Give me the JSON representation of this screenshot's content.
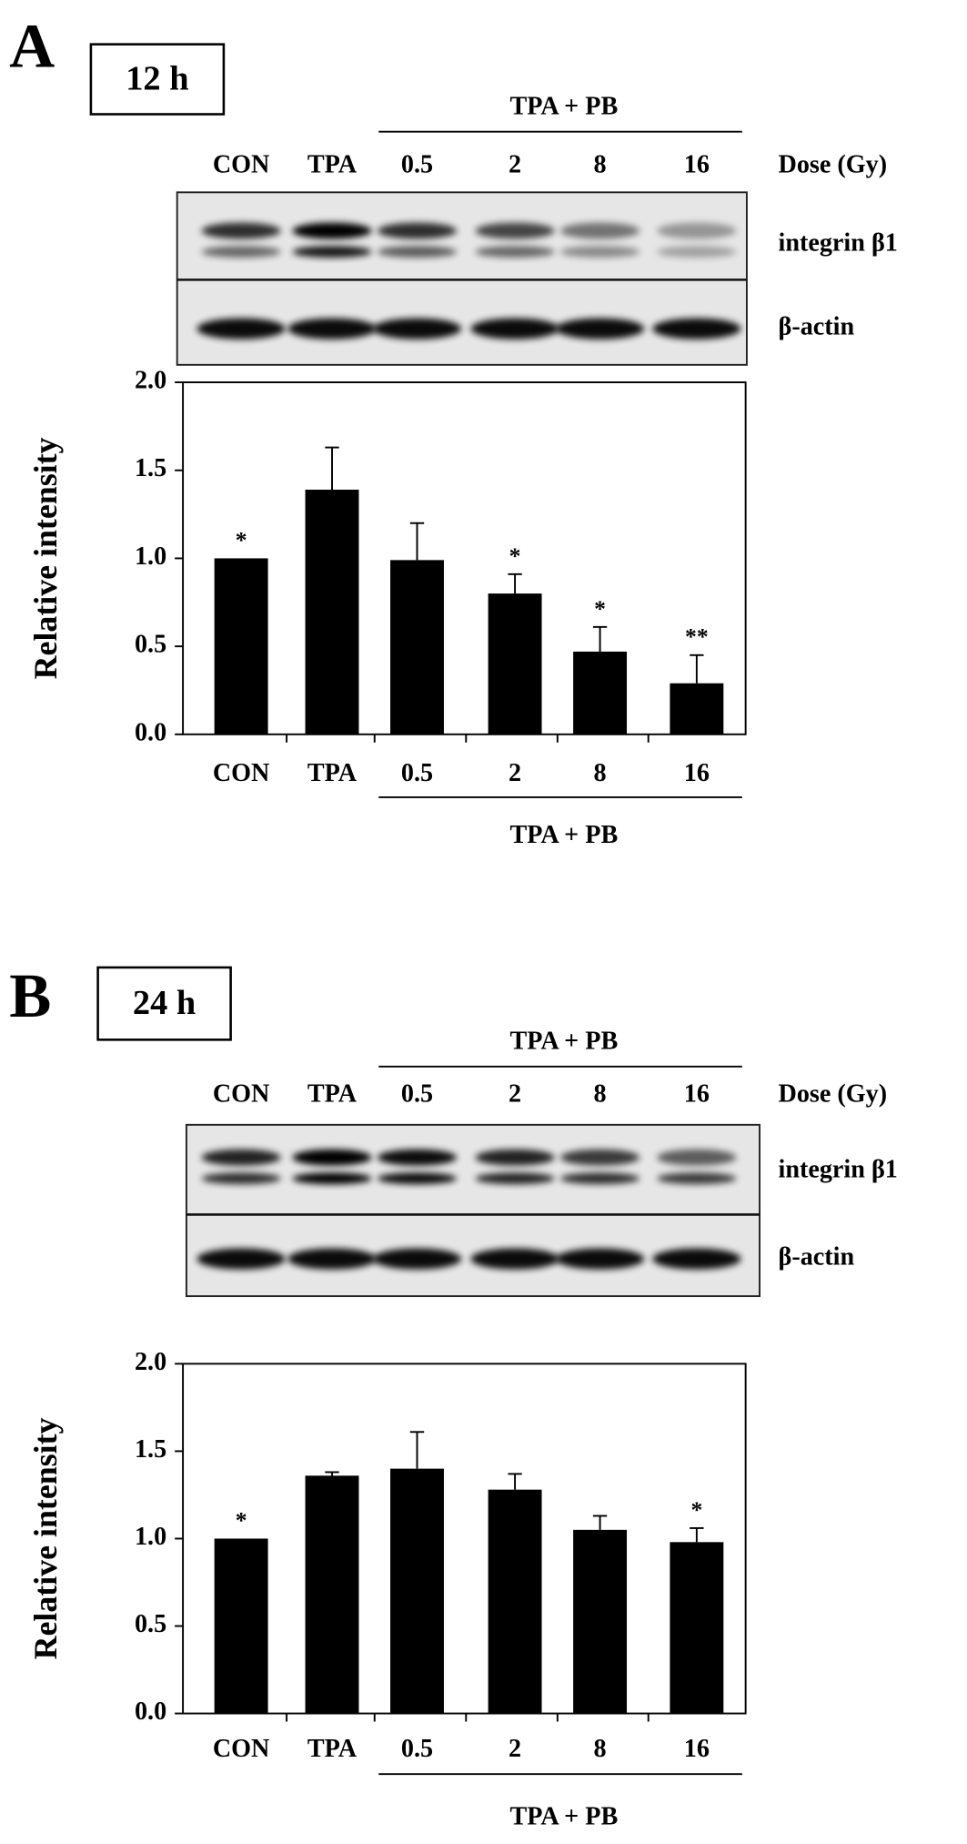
{
  "chart_data": [
    {
      "type": "bar",
      "panel": "A",
      "time_label": "12 h",
      "group_label": "TPA + PB",
      "dose_label": "Dose (Gy)",
      "blot_labels": [
        "integrin β1",
        "β-actin"
      ],
      "ylabel": "Relative intensity",
      "categories": [
        "CON",
        "TPA",
        "0.5",
        "2",
        "8",
        "16"
      ],
      "values": [
        1.0,
        1.39,
        0.99,
        0.8,
        0.47,
        0.29
      ],
      "errors": [
        0,
        0.24,
        0.21,
        0.11,
        0.14,
        0.16
      ],
      "annotations": [
        "*",
        null,
        null,
        "*",
        "*",
        "**"
      ],
      "color": "#000000",
      "ylim": [
        0,
        2
      ],
      "yticks": [
        {
          "value": 0,
          "label": "0.0"
        },
        {
          "value": 0.5,
          "label": "0.5"
        },
        {
          "value": 1,
          "label": "1.0"
        },
        {
          "value": 1.5,
          "label": "1.5"
        },
        {
          "value": 2,
          "label": "2.0"
        }
      ]
    },
    {
      "type": "bar",
      "panel": "B",
      "time_label": "24 h",
      "group_label": "TPA + PB",
      "dose_label": "Dose (Gy)",
      "blot_labels": [
        "integrin β1",
        "β-actin"
      ],
      "ylabel": "Relative intensity",
      "categories": [
        "CON",
        "TPA",
        "0.5",
        "2",
        "8",
        "16"
      ],
      "values": [
        1.0,
        1.36,
        1.4,
        1.28,
        1.05,
        0.98
      ],
      "errors": [
        0,
        0.02,
        0.21,
        0.09,
        0.08,
        0.08
      ],
      "annotations": [
        "*",
        null,
        null,
        null,
        null,
        "*"
      ],
      "color": "#000000",
      "ylim": [
        0,
        2
      ],
      "yticks": [
        {
          "value": 0,
          "label": "0.0"
        },
        {
          "value": 0.5,
          "label": "0.5"
        },
        {
          "value": 1,
          "label": "1.0"
        },
        {
          "value": 1.5,
          "label": "1.5"
        },
        {
          "value": 2,
          "label": "2.0"
        }
      ]
    }
  ]
}
